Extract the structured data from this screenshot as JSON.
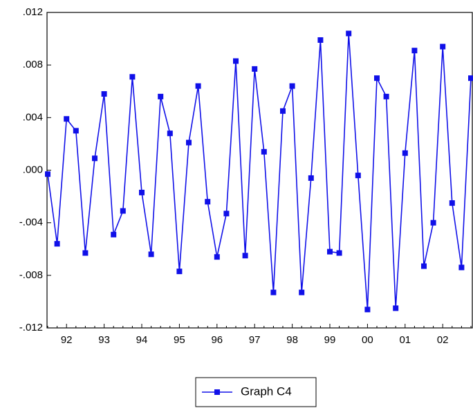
{
  "chart_data": {
    "type": "line",
    "categories": [
      null,
      null,
      "92",
      null,
      null,
      null,
      "93",
      null,
      null,
      null,
      "94",
      null,
      null,
      null,
      "95",
      null,
      null,
      null,
      "96",
      null,
      null,
      null,
      "97",
      null,
      null,
      null,
      "98",
      null,
      null,
      null,
      "99",
      null,
      null,
      null,
      "00",
      null,
      null,
      null,
      "01",
      null,
      null,
      null,
      "02",
      null,
      null,
      null
    ],
    "series": [
      {
        "name": "Graph C4",
        "color": "#1010e8",
        "values": [
          -0.0003,
          -0.0056,
          0.0039,
          0.003,
          -0.0063,
          0.0009,
          0.0058,
          -0.0049,
          -0.0031,
          0.0071,
          -0.0017,
          -0.0064,
          0.0056,
          0.0028,
          -0.0077,
          0.0021,
          0.0064,
          -0.0024,
          -0.0066,
          -0.0033,
          0.0083,
          -0.0065,
          0.0077,
          0.0014,
          -0.0093,
          0.0045,
          0.0064,
          -0.0093,
          -0.0006,
          0.0099,
          -0.0062,
          -0.0063,
          0.0104,
          -0.0004,
          -0.0106,
          0.007,
          0.0056,
          -0.0105,
          0.0013,
          0.0091,
          -0.0073,
          -0.004,
          0.0094,
          -0.0025,
          -0.0074,
          0.007
        ]
      }
    ],
    "ylim": [
      -0.012,
      0.012
    ],
    "yticks": [
      {
        "value": -0.012,
        "label": "-.012"
      },
      {
        "value": -0.008,
        "label": "-.008"
      },
      {
        "value": -0.004,
        "label": "-.004"
      },
      {
        "value": 0,
        "label": ".000"
      },
      {
        "value": 0.004,
        "label": ".004"
      },
      {
        "value": 0.008,
        "label": ".008"
      },
      {
        "value": 0.012,
        "label": ".012"
      }
    ],
    "grid": false,
    "legend": "bottom"
  }
}
